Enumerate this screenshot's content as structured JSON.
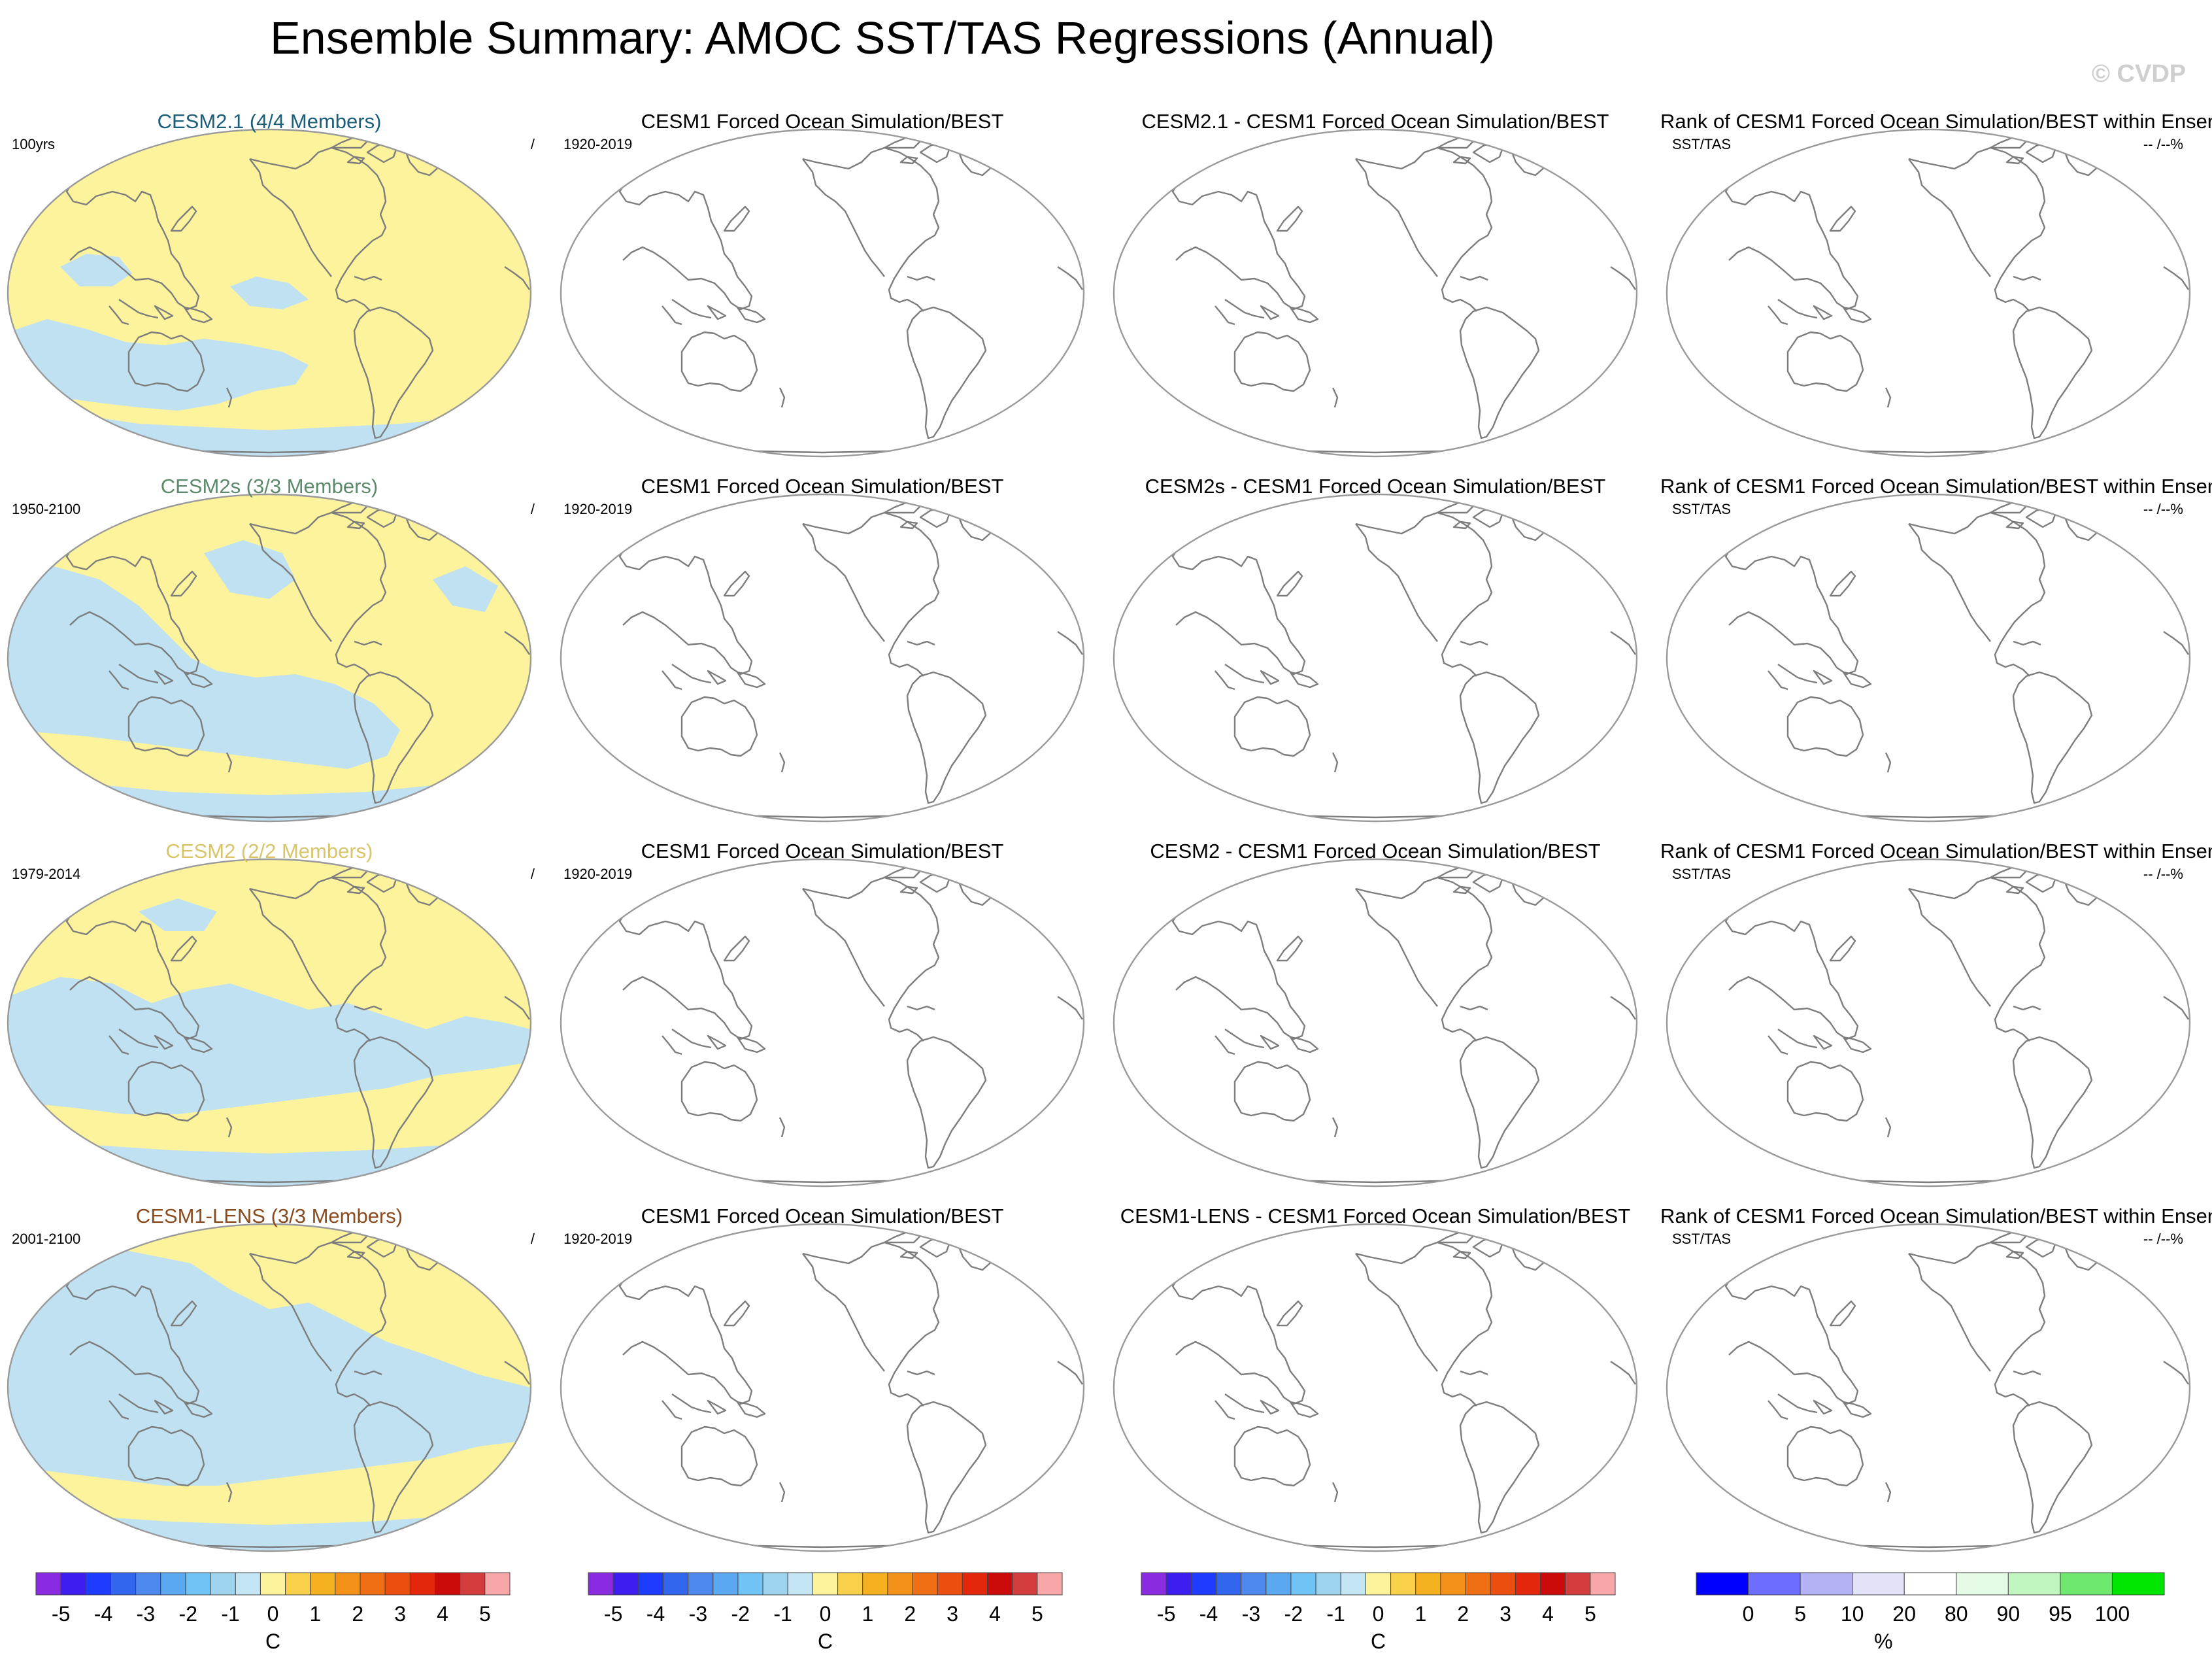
{
  "title": "Ensemble Summary: AMOC SST/TAS Regressions (Annual)",
  "watermark": "© CVDP",
  "colors": {
    "yellow": "#fcf39c",
    "blue": "#bfe1f2",
    "coast": "#7d7d7d",
    "ocean_outline": "#9a9a9a"
  },
  "rows": [
    {
      "model_title": "CESM2.1 (4/4 Members)",
      "model_color": "#1b5e7a",
      "model_period": "100yrs",
      "model_right": "/",
      "obs_title": "CESM1 Forced Ocean Simulation/BEST",
      "obs_period": "1920-2019",
      "diff_title": "CESM2.1 - CESM1 Forced Ocean Simulation/BEST",
      "rank_title": "Rank of CESM1 Forced Ocean Simulation/BEST within Ensen",
      "rank_left": "SST/TAS",
      "rank_right": "-- /--%"
    },
    {
      "model_title": "CESM2s (3/3 Members)",
      "model_color": "#5b8a6a",
      "model_period": "1950-2100",
      "model_right": "/",
      "obs_title": "CESM1 Forced Ocean Simulation/BEST",
      "obs_period": "1920-2019",
      "diff_title": "CESM2s - CESM1 Forced Ocean Simulation/BEST",
      "rank_title": "Rank of CESM1 Forced Ocean Simulation/BEST within Ensen",
      "rank_left": "SST/TAS",
      "rank_right": "-- /--%"
    },
    {
      "model_title": "CESM2 (2/2 Members)",
      "model_color": "#d8c56a",
      "model_period": "1979-2014",
      "model_right": "/",
      "obs_title": "CESM1 Forced Ocean Simulation/BEST",
      "obs_period": "1920-2019",
      "diff_title": "CESM2 - CESM1 Forced Ocean Simulation/BEST",
      "rank_title": "Rank of CESM1 Forced Ocean Simulation/BEST within Ensen",
      "rank_left": "SST/TAS",
      "rank_right": "-- /--%"
    },
    {
      "model_title": "CESM1-LENS (3/3 Members)",
      "model_color": "#8a4a1e",
      "model_period": "2001-2100",
      "model_right": "/",
      "obs_title": "CESM1 Forced Ocean Simulation/BEST",
      "obs_period": "1920-2019",
      "diff_title": "CESM1-LENS - CESM1 Forced Ocean Simulation/BEST",
      "rank_title": "Rank of CESM1 Forced Ocean Simulation/BEST within Ensen",
      "rank_left": "SST/TAS",
      "rank_right": "-- /--%"
    }
  ],
  "colorbars": [
    {
      "unit": "C",
      "colors": [
        "#8a2be2",
        "#3c1ef0",
        "#1e3cff",
        "#3366ee",
        "#4d88ee",
        "#5aa8f0",
        "#6fc3f5",
        "#9fd4ee",
        "#c4e5f3",
        "#fcf39c",
        "#f8d04a",
        "#f5b01f",
        "#f39018",
        "#f06e14",
        "#ec4e10",
        "#e4260c",
        "#cc0a0a",
        "#d23c3c",
        "#f7a7a7"
      ],
      "labels": [
        "-5",
        "-4",
        "-3",
        "-2",
        "-1",
        "0",
        "1",
        "2",
        "3",
        "4",
        "5"
      ]
    },
    {
      "unit": "C",
      "colors": [
        "#8a2be2",
        "#3c1ef0",
        "#1e3cff",
        "#3366ee",
        "#4d88ee",
        "#5aa8f0",
        "#6fc3f5",
        "#9fd4ee",
        "#c4e5f3",
        "#fcf39c",
        "#f8d04a",
        "#f5b01f",
        "#f39018",
        "#f06e14",
        "#ec4e10",
        "#e4260c",
        "#cc0a0a",
        "#d23c3c",
        "#f7a7a7"
      ],
      "labels": [
        "-5",
        "-4",
        "-3",
        "-2",
        "-1",
        "0",
        "1",
        "2",
        "3",
        "4",
        "5"
      ]
    },
    {
      "unit": "C",
      "colors": [
        "#8a2be2",
        "#3c1ef0",
        "#1e3cff",
        "#3366ee",
        "#4d88ee",
        "#5aa8f0",
        "#6fc3f5",
        "#9fd4ee",
        "#c4e5f3",
        "#fcf39c",
        "#f8d04a",
        "#f5b01f",
        "#f39018",
        "#f06e14",
        "#ec4e10",
        "#e4260c",
        "#cc0a0a",
        "#d23c3c",
        "#f7a7a7"
      ],
      "labels": [
        "-5",
        "-4",
        "-3",
        "-2",
        "-1",
        "0",
        "1",
        "2",
        "3",
        "4",
        "5"
      ]
    },
    {
      "unit": "%",
      "colors": [
        "#0000ff",
        "#6d6dff",
        "#b2b2f5",
        "#e2e2f9",
        "#ffffff",
        "#e5fbe5",
        "#c1f6c1",
        "#6ee86e",
        "#00e600"
      ],
      "labels": [
        "0",
        "5",
        "10",
        "20",
        "80",
        "90",
        "95",
        "100"
      ]
    }
  ],
  "chart_data": {
    "type": "heatmap",
    "title": "Ensemble Summary: AMOC SST/TAS Regressions (Annual)",
    "panels_per_row": 4,
    "color_levels_C": [
      -5,
      -4,
      -3,
      -2,
      -1,
      0,
      1,
      2,
      3,
      4,
      5
    ],
    "rank_levels_pct": [
      0,
      5,
      10,
      20,
      80,
      90,
      95,
      100
    ]
  }
}
